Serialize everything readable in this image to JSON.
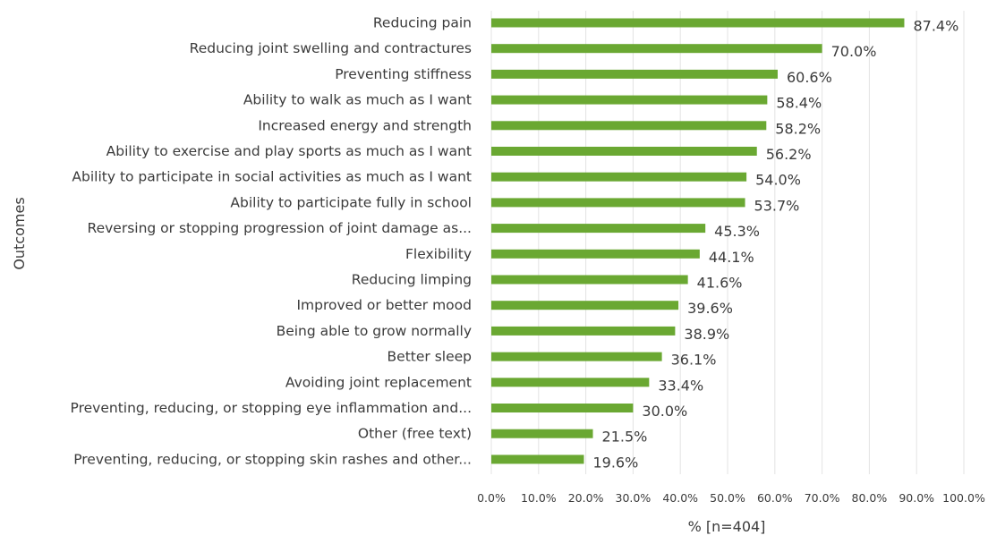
{
  "chart_data": {
    "type": "bar",
    "orientation": "horizontal",
    "categories": [
      "Reducing pain",
      "Reducing joint swelling and contractures",
      "Preventing stiffness",
      "Ability to walk as much as I want",
      "Increased energy and strength",
      "Ability to exercise and play sports as much as I want",
      "Ability to participate in social activities as much as I want",
      "Ability to participate fully in school",
      "Reversing or stopping progression of joint damage as...",
      "Flexibility",
      "Reducing limping",
      "Improved or better mood",
      "Being able to grow normally",
      "Better sleep",
      "Avoiding joint replacement",
      "Preventing, reducing, or stopping eye inflammation and...",
      "Other (free text)",
      "Preventing, reducing, or stopping skin rashes and other..."
    ],
    "values": [
      87.4,
      70.0,
      60.6,
      58.4,
      58.2,
      56.2,
      54.0,
      53.7,
      45.3,
      44.1,
      41.6,
      39.6,
      38.9,
      36.1,
      33.4,
      30.0,
      21.5,
      19.6
    ],
    "value_labels": [
      "87.4%",
      "70.0%",
      "60.6%",
      "58.4%",
      "58.2%",
      "56.2%",
      "54.0%",
      "53.7%",
      "45.3%",
      "44.1%",
      "41.6%",
      "39.6%",
      "38.9%",
      "36.1%",
      "33.4%",
      "30.0%",
      "21.5%",
      "19.6%"
    ],
    "xlabel": "% [n=404]",
    "ylabel": "Outcomes",
    "xlim": [
      0,
      100
    ],
    "xticks": [
      "0.0%",
      "10.0%",
      "20.0%",
      "30.0%",
      "40.0%",
      "50.0%",
      "60.0%",
      "70.0%",
      "80.0%",
      "90.0%",
      "100.0%"
    ],
    "grid": "vertical",
    "legend": "none",
    "bar_color": "#6aa832"
  }
}
